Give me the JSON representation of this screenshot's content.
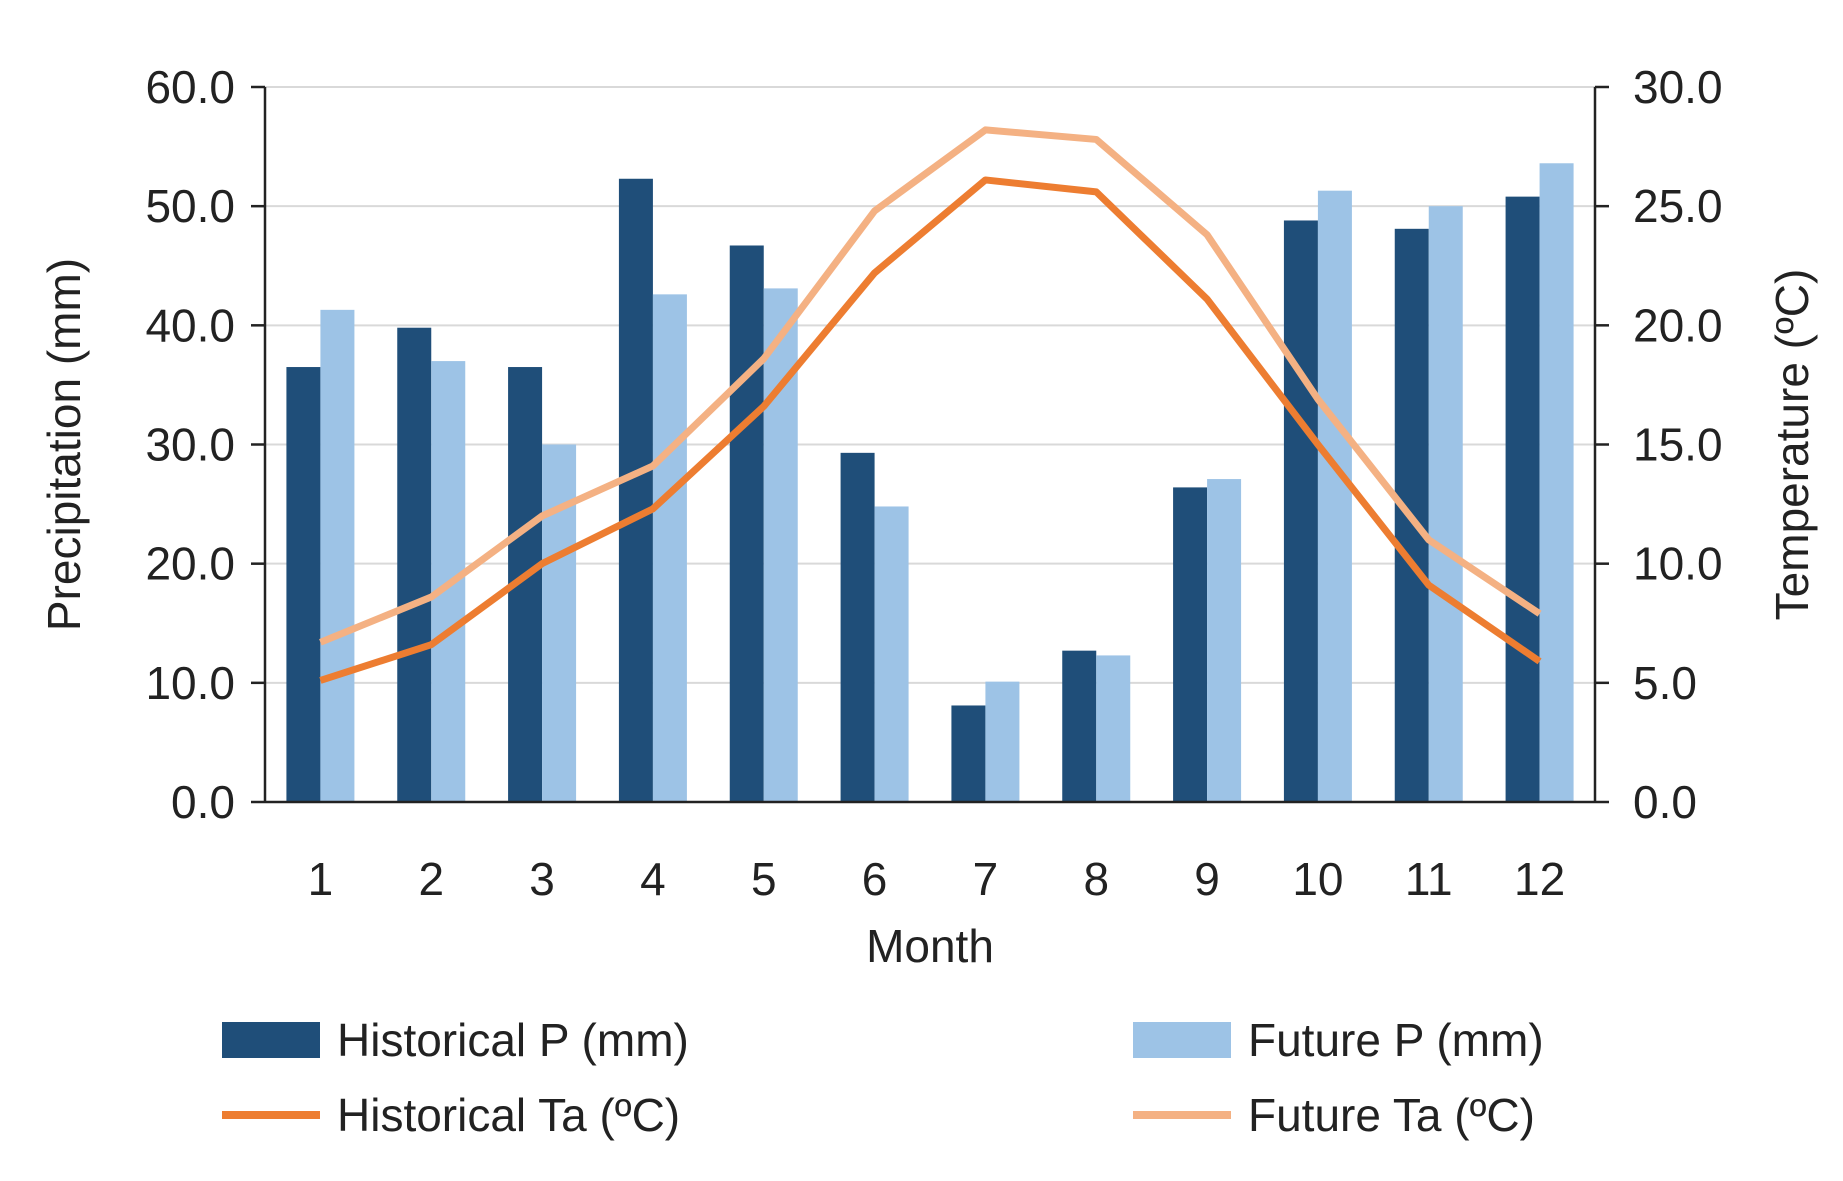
{
  "chart_data": {
    "type": "bar",
    "categories": [
      "1",
      "2",
      "3",
      "4",
      "5",
      "6",
      "7",
      "8",
      "9",
      "10",
      "11",
      "12"
    ],
    "xlabel": "Month",
    "ylabel": "Precipitation (mm)",
    "ylabel_right": "Temperature (ºC)",
    "ylim": [
      0,
      60
    ],
    "ylim_right": [
      0,
      30
    ],
    "yticks": [
      "0.0",
      "10.0",
      "20.0",
      "30.0",
      "40.0",
      "50.0",
      "60.0"
    ],
    "yticks_right": [
      "0.0",
      "5.0",
      "10.0",
      "15.0",
      "20.0",
      "25.0",
      "30.0"
    ],
    "grid": true,
    "legend_position": "bottom",
    "series": [
      {
        "name": "Historical P (mm)",
        "type": "bar",
        "axis": "left",
        "color": "#1f4e79",
        "values": [
          36.5,
          39.8,
          36.5,
          52.3,
          46.7,
          29.3,
          8.1,
          12.7,
          26.4,
          48.8,
          48.1,
          50.8
        ]
      },
      {
        "name": "Future P (mm)",
        "type": "bar",
        "axis": "left",
        "color": "#9dc3e6",
        "values": [
          41.3,
          37.0,
          30.0,
          42.6,
          43.1,
          24.8,
          10.1,
          12.3,
          27.1,
          51.3,
          50.0,
          53.6
        ]
      },
      {
        "name": "Historical Ta (ºC)",
        "type": "line",
        "axis": "right",
        "color": "#ed7d31",
        "values": [
          5.1,
          6.6,
          10.0,
          12.3,
          16.6,
          22.2,
          26.1,
          25.6,
          21.1,
          15.0,
          9.1,
          5.9
        ]
      },
      {
        "name": "Future Ta (ºC)",
        "type": "line",
        "axis": "right",
        "color": "#f4b183",
        "values": [
          6.7,
          8.6,
          12.0,
          14.1,
          18.6,
          24.8,
          28.2,
          27.8,
          23.8,
          16.9,
          11.0,
          7.9
        ]
      }
    ]
  }
}
